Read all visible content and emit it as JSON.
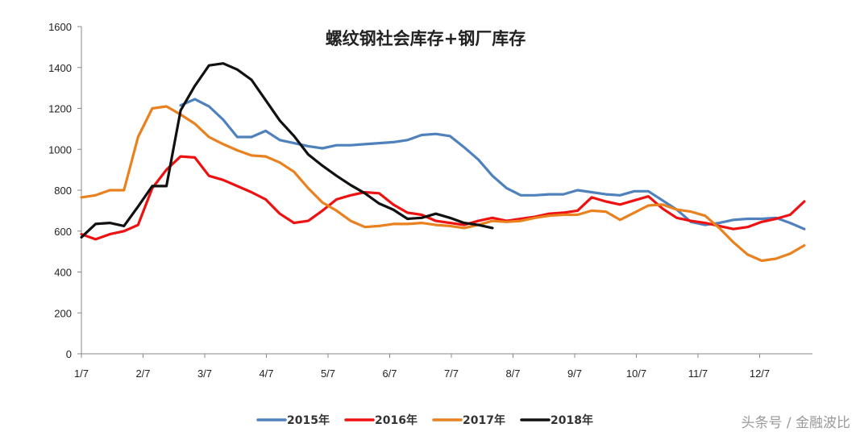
{
  "chart_data": {
    "type": "line",
    "title": "螺纹钢社会库存+钢厂库存",
    "xlabel": "",
    "ylabel": "",
    "ylim": [
      0,
      1600
    ],
    "yticks": [
      0,
      200,
      400,
      600,
      800,
      1000,
      1200,
      1400,
      1600
    ],
    "x_tick_labels": [
      "1/7",
      "2/7",
      "3/7",
      "4/7",
      "5/7",
      "6/7",
      "7/7",
      "8/7",
      "9/7",
      "10/7",
      "11/7",
      "12/7"
    ],
    "x_unit": "week index (0 = 1/7, ~4.35 weeks per month)",
    "grid": false,
    "legend_position": "bottom",
    "series": [
      {
        "name": "2015年",
        "color": "#4F81BD",
        "x": [
          7,
          8,
          9,
          10,
          11,
          12,
          13,
          14,
          15,
          16,
          17,
          18,
          19,
          20,
          21,
          22,
          23,
          24,
          25,
          26,
          27,
          28,
          29,
          30,
          31,
          32,
          33,
          34,
          35,
          36,
          37,
          38,
          39,
          40,
          41,
          42,
          43,
          44,
          45,
          46,
          47,
          48,
          49,
          50,
          51
        ],
        "values": [
          1215,
          1245,
          1210,
          1145,
          1060,
          1060,
          1090,
          1045,
          1030,
          1015,
          1005,
          1020,
          1020,
          1025,
          1030,
          1035,
          1045,
          1070,
          1075,
          1065,
          1010,
          950,
          870,
          810,
          775,
          775,
          780,
          780,
          800,
          790,
          780,
          775,
          795,
          795,
          750,
          705,
          645,
          630,
          640,
          655,
          660,
          660,
          665,
          640,
          610
        ]
      },
      {
        "name": "2016年",
        "color": "#EE1111",
        "x": [
          0,
          1,
          2,
          3,
          4,
          5,
          6,
          7,
          8,
          9,
          10,
          11,
          12,
          13,
          14,
          15,
          16,
          17,
          18,
          19,
          20,
          21,
          22,
          23,
          24,
          25,
          26,
          27,
          28,
          29,
          30,
          31,
          32,
          33,
          34,
          35,
          36,
          37,
          38,
          39,
          40,
          41,
          42,
          43,
          44,
          45,
          46,
          47,
          48,
          49,
          50,
          51
        ],
        "values": [
          585,
          560,
          585,
          600,
          630,
          810,
          900,
          965,
          960,
          870,
          850,
          820,
          790,
          755,
          685,
          640,
          650,
          700,
          755,
          775,
          790,
          785,
          730,
          690,
          680,
          650,
          640,
          630,
          650,
          665,
          650,
          660,
          670,
          685,
          690,
          700,
          765,
          745,
          730,
          750,
          770,
          710,
          665,
          650,
          640,
          625,
          610,
          620,
          645,
          660,
          680,
          745
        ]
      },
      {
        "name": "2017年",
        "color": "#E9811E",
        "x": [
          0,
          1,
          2,
          3,
          4,
          5,
          6,
          7,
          8,
          9,
          10,
          11,
          12,
          13,
          14,
          15,
          16,
          17,
          18,
          19,
          20,
          21,
          22,
          23,
          24,
          25,
          26,
          27,
          28,
          29,
          30,
          31,
          32,
          33,
          34,
          35,
          36,
          37,
          38,
          39,
          40,
          41,
          42,
          43,
          44,
          45,
          46,
          47,
          48,
          49,
          50,
          51
        ],
        "values": [
          765,
          775,
          800,
          800,
          1060,
          1200,
          1210,
          1170,
          1125,
          1060,
          1025,
          995,
          970,
          965,
          935,
          890,
          810,
          740,
          700,
          650,
          620,
          625,
          635,
          635,
          640,
          630,
          625,
          615,
          630,
          650,
          645,
          650,
          665,
          675,
          680,
          680,
          700,
          695,
          655,
          690,
          725,
          730,
          705,
          695,
          675,
          615,
          545,
          485,
          455,
          465,
          490,
          530
        ]
      },
      {
        "name": "2018年",
        "color": "#111111",
        "x": [
          0,
          1,
          2,
          3,
          4,
          5,
          6,
          7,
          8,
          9,
          10,
          11,
          12,
          13,
          14,
          15,
          16,
          17,
          18,
          19,
          20,
          21,
          22,
          23,
          24,
          25,
          26,
          27,
          28,
          29
        ],
        "values": [
          570,
          635,
          640,
          625,
          720,
          820,
          820,
          1190,
          1310,
          1410,
          1420,
          1390,
          1340,
          1240,
          1140,
          1065,
          975,
          920,
          870,
          825,
          785,
          735,
          705,
          660,
          665,
          685,
          665,
          640,
          630,
          615
        ]
      }
    ]
  },
  "watermark": "头条号 / 金融波比"
}
